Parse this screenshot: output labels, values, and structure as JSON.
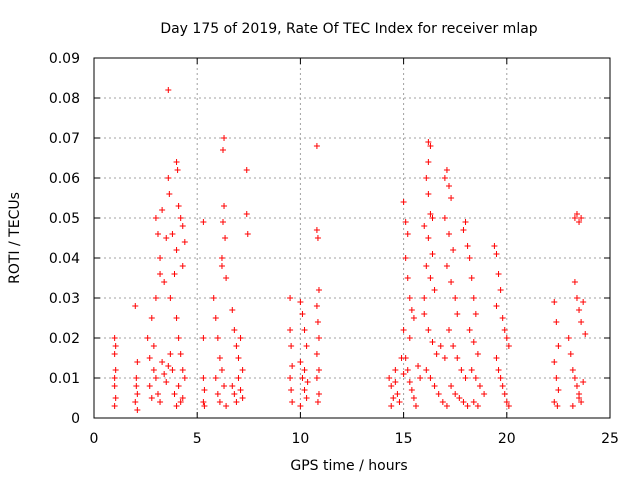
{
  "chart_data": {
    "type": "scatter",
    "title": "Day 175 of 2019, Rate Of TEC Index for receiver mlap",
    "xlabel": "GPS time / hours",
    "ylabel": "ROTI / TECUs",
    "xlim": [
      0,
      25
    ],
    "ylim": [
      0,
      0.09
    ],
    "xticks": [
      0,
      5,
      10,
      15,
      20,
      25
    ],
    "xtick_labels": [
      "0",
      "5",
      "10",
      "15",
      "20",
      "25"
    ],
    "yticks": [
      0,
      0.01,
      0.02,
      0.03,
      0.04,
      0.05,
      0.06,
      0.07,
      0.08,
      0.09
    ],
    "ytick_labels": [
      "0",
      "0.01",
      "0.02",
      "0.03",
      "0.04",
      "0.05",
      "0.06",
      "0.07",
      "0.08",
      "0.09"
    ],
    "grid": true,
    "marker": "+",
    "color": "#ff0000",
    "series": [
      {
        "points": [
          [
            1.0,
            0.02
          ],
          [
            1.0,
            0.016
          ],
          [
            1.05,
            0.012
          ],
          [
            1.0,
            0.008
          ],
          [
            1.05,
            0.005
          ],
          [
            1.0,
            0.003
          ],
          [
            1.05,
            0.018
          ],
          [
            1.0,
            0.01
          ],
          [
            2.0,
            0.028
          ],
          [
            2.1,
            0.014
          ],
          [
            2.05,
            0.01
          ],
          [
            2.1,
            0.006
          ],
          [
            2.0,
            0.004
          ],
          [
            2.1,
            0.002
          ],
          [
            2.05,
            0.008
          ],
          [
            2.6,
            0.02
          ],
          [
            2.7,
            0.015
          ],
          [
            2.8,
            0.025
          ],
          [
            2.9,
            0.018
          ],
          [
            3.0,
            0.03
          ],
          [
            3.1,
            0.046
          ],
          [
            3.2,
            0.04
          ],
          [
            3.3,
            0.052
          ],
          [
            3.0,
            0.05
          ],
          [
            3.2,
            0.036
          ],
          [
            3.4,
            0.034
          ],
          [
            3.5,
            0.045
          ],
          [
            2.7,
            0.008
          ],
          [
            2.8,
            0.005
          ],
          [
            2.9,
            0.012
          ],
          [
            3.0,
            0.01
          ],
          [
            3.1,
            0.006
          ],
          [
            3.2,
            0.004
          ],
          [
            3.3,
            0.014
          ],
          [
            3.4,
            0.011
          ],
          [
            3.5,
            0.009
          ],
          [
            3.6,
            0.013
          ],
          [
            3.7,
            0.016
          ],
          [
            3.8,
            0.012
          ],
          [
            3.6,
            0.082
          ],
          [
            3.6,
            0.06
          ],
          [
            3.65,
            0.056
          ],
          [
            3.8,
            0.046
          ],
          [
            3.9,
            0.036
          ],
          [
            3.7,
            0.03
          ],
          [
            4.0,
            0.064
          ],
          [
            4.05,
            0.062
          ],
          [
            4.1,
            0.053
          ],
          [
            4.2,
            0.05
          ],
          [
            4.3,
            0.048
          ],
          [
            4.0,
            0.042
          ],
          [
            4.4,
            0.044
          ],
          [
            4.3,
            0.038
          ],
          [
            4.0,
            0.025
          ],
          [
            4.1,
            0.02
          ],
          [
            4.2,
            0.016
          ],
          [
            4.3,
            0.012
          ],
          [
            4.4,
            0.01
          ],
          [
            4.1,
            0.008
          ],
          [
            4.3,
            0.005
          ],
          [
            3.9,
            0.006
          ],
          [
            4.0,
            0.003
          ],
          [
            4.2,
            0.004
          ],
          [
            5.3,
            0.049
          ],
          [
            5.3,
            0.02
          ],
          [
            5.3,
            0.01
          ],
          [
            5.35,
            0.007
          ],
          [
            5.3,
            0.004
          ],
          [
            5.35,
            0.003
          ],
          [
            5.8,
            0.03
          ],
          [
            5.9,
            0.025
          ],
          [
            6.0,
            0.02
          ],
          [
            6.1,
            0.015
          ],
          [
            6.2,
            0.04
          ],
          [
            6.2,
            0.038
          ],
          [
            6.25,
            0.049
          ],
          [
            6.3,
            0.053
          ],
          [
            6.25,
            0.067
          ],
          [
            6.3,
            0.07
          ],
          [
            6.35,
            0.045
          ],
          [
            6.4,
            0.035
          ],
          [
            5.9,
            0.01
          ],
          [
            6.0,
            0.006
          ],
          [
            6.1,
            0.004
          ],
          [
            6.2,
            0.012
          ],
          [
            6.3,
            0.008
          ],
          [
            6.4,
            0.003
          ],
          [
            6.7,
            0.027
          ],
          [
            6.8,
            0.022
          ],
          [
            6.9,
            0.018
          ],
          [
            7.0,
            0.015
          ],
          [
            7.1,
            0.02
          ],
          [
            7.2,
            0.012
          ],
          [
            6.7,
            0.008
          ],
          [
            6.8,
            0.006
          ],
          [
            6.9,
            0.004
          ],
          [
            7.0,
            0.01
          ],
          [
            7.1,
            0.007
          ],
          [
            7.2,
            0.005
          ],
          [
            7.4,
            0.062
          ],
          [
            7.4,
            0.051
          ],
          [
            7.45,
            0.046
          ],
          [
            9.5,
            0.022
          ],
          [
            9.55,
            0.018
          ],
          [
            9.6,
            0.013
          ],
          [
            9.5,
            0.01
          ],
          [
            9.55,
            0.007
          ],
          [
            9.6,
            0.004
          ],
          [
            9.5,
            0.03
          ],
          [
            10.0,
            0.029
          ],
          [
            10.1,
            0.026
          ],
          [
            10.2,
            0.022
          ],
          [
            10.3,
            0.018
          ],
          [
            10.0,
            0.014
          ],
          [
            10.1,
            0.01
          ],
          [
            10.2,
            0.007
          ],
          [
            10.3,
            0.005
          ],
          [
            10.0,
            0.003
          ],
          [
            10.2,
            0.012
          ],
          [
            10.35,
            0.009
          ],
          [
            10.8,
            0.068
          ],
          [
            10.8,
            0.047
          ],
          [
            10.85,
            0.045
          ],
          [
            10.9,
            0.032
          ],
          [
            10.8,
            0.028
          ],
          [
            10.85,
            0.024
          ],
          [
            10.9,
            0.02
          ],
          [
            10.8,
            0.016
          ],
          [
            10.9,
            0.012
          ],
          [
            10.8,
            0.01
          ],
          [
            10.9,
            0.006
          ],
          [
            10.85,
            0.004
          ],
          [
            14.3,
            0.01
          ],
          [
            14.4,
            0.008
          ],
          [
            14.5,
            0.005
          ],
          [
            14.6,
            0.012
          ],
          [
            14.7,
            0.006
          ],
          [
            14.8,
            0.004
          ],
          [
            14.9,
            0.015
          ],
          [
            15.0,
            0.011
          ],
          [
            14.4,
            0.003
          ],
          [
            14.6,
            0.009
          ],
          [
            15.0,
            0.054
          ],
          [
            15.1,
            0.049
          ],
          [
            15.2,
            0.046
          ],
          [
            15.1,
            0.04
          ],
          [
            15.2,
            0.035
          ],
          [
            15.3,
            0.03
          ],
          [
            15.4,
            0.027
          ],
          [
            15.5,
            0.025
          ],
          [
            15.0,
            0.022
          ],
          [
            15.3,
            0.02
          ],
          [
            15.1,
            0.015
          ],
          [
            15.2,
            0.012
          ],
          [
            15.3,
            0.009
          ],
          [
            15.4,
            0.007
          ],
          [
            15.5,
            0.005
          ],
          [
            15.6,
            0.003
          ],
          [
            15.7,
            0.013
          ],
          [
            15.8,
            0.01
          ],
          [
            16.2,
            0.069
          ],
          [
            16.3,
            0.068
          ],
          [
            16.2,
            0.064
          ],
          [
            16.1,
            0.06
          ],
          [
            16.2,
            0.056
          ],
          [
            16.3,
            0.051
          ],
          [
            16.4,
            0.05
          ],
          [
            16.0,
            0.048
          ],
          [
            16.2,
            0.045
          ],
          [
            16.4,
            0.041
          ],
          [
            16.1,
            0.038
          ],
          [
            16.3,
            0.035
          ],
          [
            16.5,
            0.032
          ],
          [
            16.0,
            0.03
          ],
          [
            16.0,
            0.026
          ],
          [
            16.2,
            0.022
          ],
          [
            16.4,
            0.019
          ],
          [
            16.6,
            0.016
          ],
          [
            16.8,
            0.018
          ],
          [
            17.0,
            0.015
          ],
          [
            16.1,
            0.012
          ],
          [
            16.3,
            0.01
          ],
          [
            16.5,
            0.008
          ],
          [
            16.7,
            0.006
          ],
          [
            16.9,
            0.004
          ],
          [
            17.1,
            0.003
          ],
          [
            17.0,
            0.06
          ],
          [
            17.1,
            0.062
          ],
          [
            17.2,
            0.058
          ],
          [
            17.3,
            0.055
          ],
          [
            17.0,
            0.05
          ],
          [
            17.2,
            0.046
          ],
          [
            17.4,
            0.042
          ],
          [
            17.1,
            0.038
          ],
          [
            17.3,
            0.034
          ],
          [
            17.5,
            0.03
          ],
          [
            17.6,
            0.026
          ],
          [
            17.2,
            0.022
          ],
          [
            17.4,
            0.018
          ],
          [
            17.6,
            0.015
          ],
          [
            17.8,
            0.012
          ],
          [
            18.0,
            0.01
          ],
          [
            17.3,
            0.008
          ],
          [
            17.5,
            0.006
          ],
          [
            17.7,
            0.005
          ],
          [
            17.9,
            0.004
          ],
          [
            18.1,
            0.003
          ],
          [
            17.9,
            0.047
          ],
          [
            18.0,
            0.049
          ],
          [
            18.1,
            0.043
          ],
          [
            18.2,
            0.04
          ],
          [
            18.3,
            0.035
          ],
          [
            18.4,
            0.03
          ],
          [
            18.5,
            0.026
          ],
          [
            18.2,
            0.022
          ],
          [
            18.4,
            0.019
          ],
          [
            18.6,
            0.016
          ],
          [
            18.3,
            0.012
          ],
          [
            18.5,
            0.01
          ],
          [
            18.7,
            0.008
          ],
          [
            18.9,
            0.006
          ],
          [
            18.4,
            0.004
          ],
          [
            18.6,
            0.003
          ],
          [
            19.4,
            0.043
          ],
          [
            19.5,
            0.041
          ],
          [
            19.6,
            0.036
          ],
          [
            19.7,
            0.032
          ],
          [
            19.5,
            0.028
          ],
          [
            19.8,
            0.025
          ],
          [
            19.9,
            0.022
          ],
          [
            20.0,
            0.02
          ],
          [
            20.1,
            0.018
          ],
          [
            19.5,
            0.015
          ],
          [
            19.6,
            0.012
          ],
          [
            19.7,
            0.01
          ],
          [
            19.8,
            0.008
          ],
          [
            19.9,
            0.006
          ],
          [
            20.0,
            0.004
          ],
          [
            20.1,
            0.003
          ],
          [
            22.3,
            0.029
          ],
          [
            22.4,
            0.024
          ],
          [
            22.5,
            0.018
          ],
          [
            22.3,
            0.014
          ],
          [
            22.4,
            0.01
          ],
          [
            22.5,
            0.007
          ],
          [
            22.3,
            0.004
          ],
          [
            22.45,
            0.003
          ],
          [
            23.0,
            0.02
          ],
          [
            23.1,
            0.016
          ],
          [
            23.2,
            0.012
          ],
          [
            23.3,
            0.01
          ],
          [
            23.4,
            0.008
          ],
          [
            23.5,
            0.006
          ],
          [
            23.6,
            0.004
          ],
          [
            23.2,
            0.003
          ],
          [
            23.5,
            0.005
          ],
          [
            23.7,
            0.009
          ],
          [
            23.3,
            0.05
          ],
          [
            23.4,
            0.051
          ],
          [
            23.5,
            0.049
          ],
          [
            23.6,
            0.05
          ],
          [
            23.3,
            0.034
          ],
          [
            23.4,
            0.03
          ],
          [
            23.5,
            0.027
          ],
          [
            23.6,
            0.024
          ],
          [
            23.7,
            0.029
          ],
          [
            23.8,
            0.021
          ]
        ]
      }
    ]
  }
}
